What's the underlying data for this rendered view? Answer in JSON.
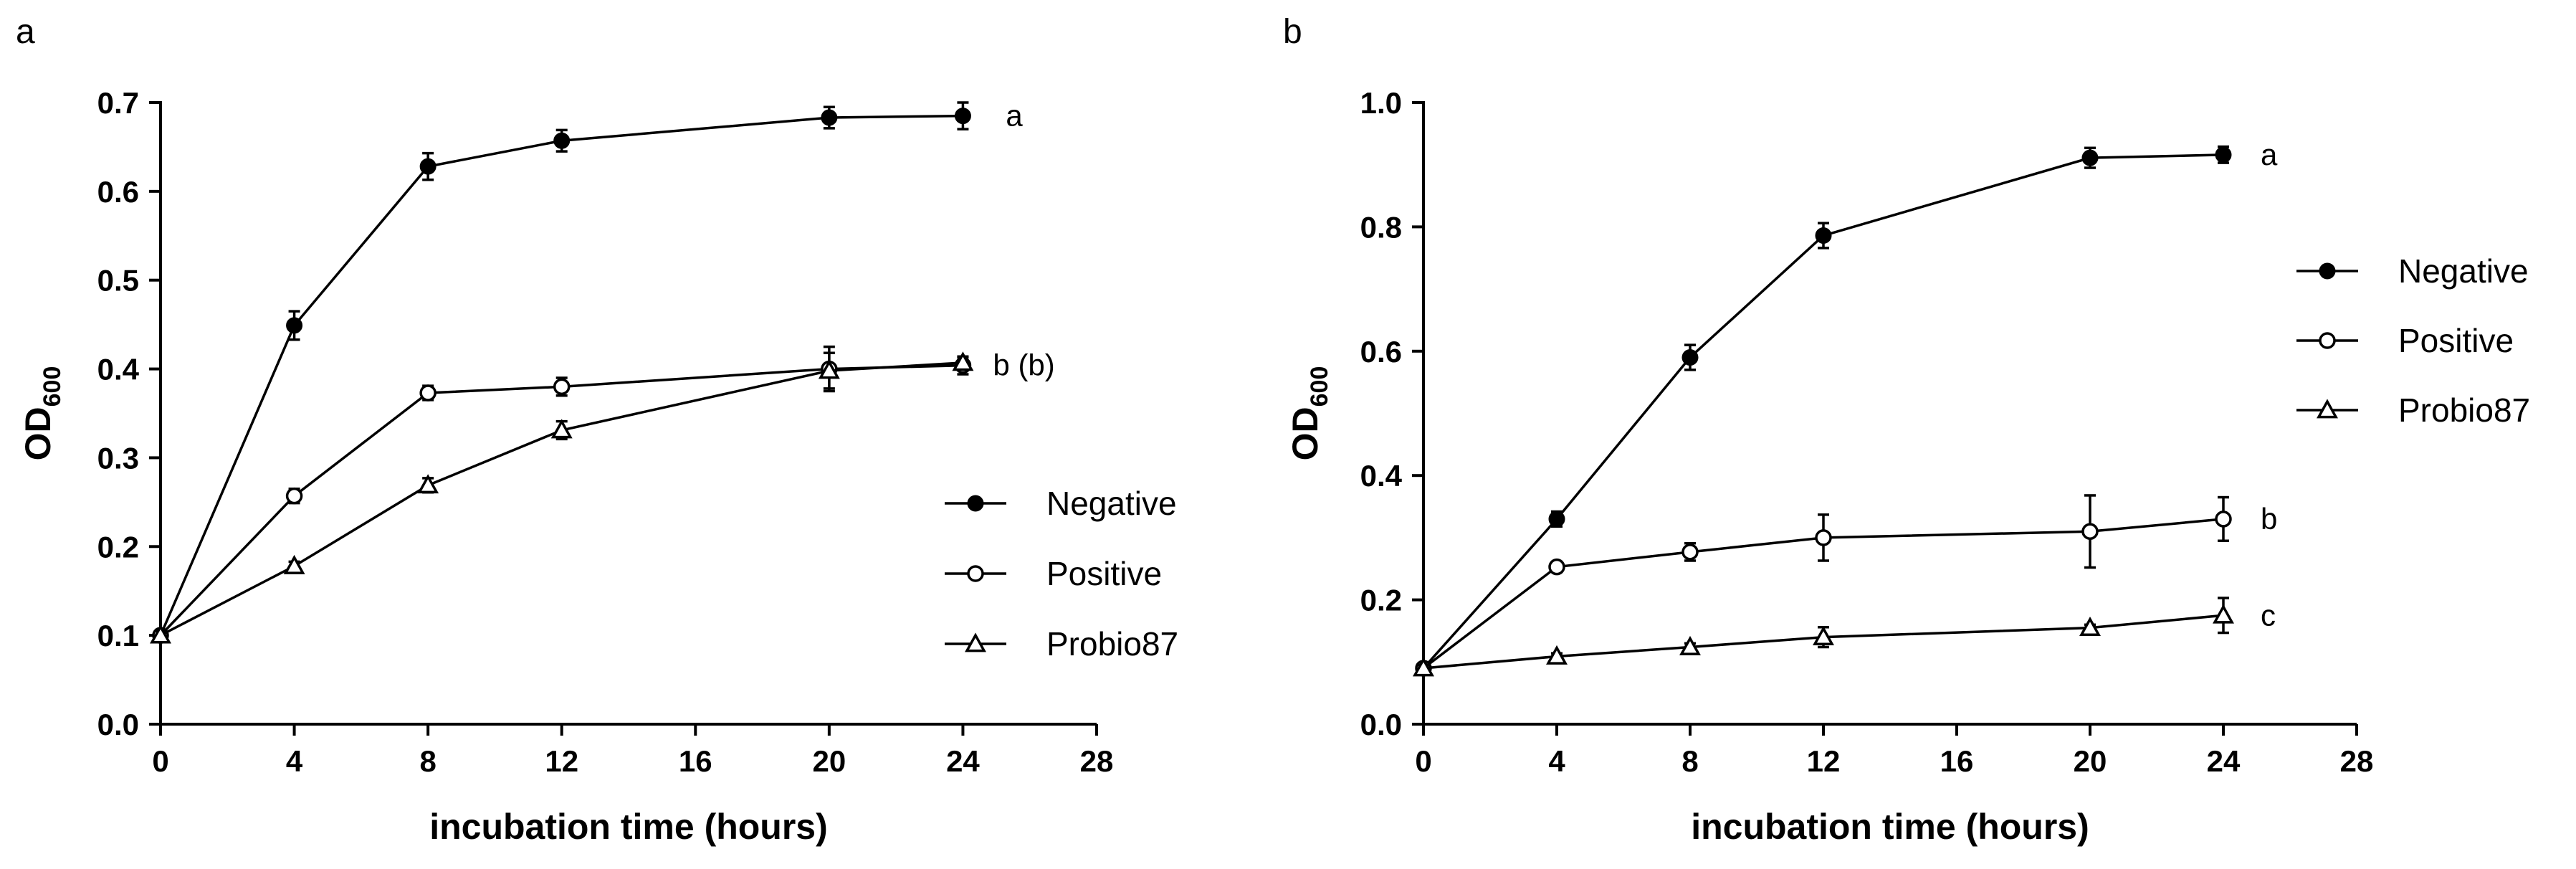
{
  "chart_data": [
    {
      "panel": "a",
      "type": "line",
      "xlabel": "incubation time (hours)",
      "ylabel": "OD",
      "ylabel_sub": "600",
      "xlim": [
        0,
        28
      ],
      "ylim": [
        0,
        0.7
      ],
      "xticks": [
        0,
        4,
        8,
        12,
        16,
        20,
        24,
        28
      ],
      "xtick_labels": [
        "0",
        "4",
        "8",
        "12",
        "16",
        "20",
        "24",
        "28"
      ],
      "yticks": [
        0,
        0.1,
        0.2,
        0.3,
        0.4,
        0.5,
        0.6,
        0.7
      ],
      "ytick_labels": [
        "0.0",
        "0.1",
        "0.2",
        "0.3",
        "0.4",
        "0.5",
        "0.6",
        "0.7"
      ],
      "grid": false,
      "legend_position": "bottom-right",
      "series": [
        {
          "name": "Negative",
          "marker": "filled-circle",
          "x": [
            0,
            4,
            8,
            12,
            20,
            24
          ],
          "y": [
            0.1,
            0.449,
            0.628,
            0.657,
            0.683,
            0.685
          ],
          "err": [
            0.005,
            0.016,
            0.015,
            0.012,
            0.012,
            0.015
          ]
        },
        {
          "name": "Positive",
          "marker": "open-circle",
          "x": [
            0,
            4,
            8,
            12,
            20,
            24
          ],
          "y": [
            0.1,
            0.257,
            0.373,
            0.38,
            0.4,
            0.404
          ],
          "err": [
            0.005,
            0.008,
            0.008,
            0.01,
            0.025,
            0.01
          ]
        },
        {
          "name": "Probio87",
          "marker": "open-triangle",
          "x": [
            0,
            4,
            8,
            12,
            20,
            24
          ],
          "y": [
            0.1,
            0.178,
            0.269,
            0.331,
            0.398,
            0.407
          ],
          "err": [
            0.005,
            0.005,
            0.008,
            0.01,
            0.02,
            0.006
          ]
        }
      ],
      "annotations": [
        {
          "text": "a",
          "near_series": "Negative"
        },
        {
          "text": "b (b)",
          "near_series": "Positive"
        }
      ]
    },
    {
      "panel": "b",
      "type": "line",
      "xlabel": "incubation time (hours)",
      "ylabel": "OD",
      "ylabel_sub": "600",
      "xlim": [
        0,
        28
      ],
      "ylim": [
        0,
        1.0
      ],
      "xticks": [
        0,
        4,
        8,
        12,
        16,
        20,
        24,
        28
      ],
      "xtick_labels": [
        "0",
        "4",
        "8",
        "12",
        "16",
        "20",
        "24",
        "28"
      ],
      "yticks": [
        0,
        0.2,
        0.4,
        0.6,
        0.8,
        1.0
      ],
      "ytick_labels": [
        "0.0",
        "0.2",
        "0.4",
        "0.6",
        "0.8",
        "1.0"
      ],
      "grid": false,
      "legend_position": "top-right, outside plot",
      "series": [
        {
          "name": "Negative",
          "marker": "filled-circle",
          "x": [
            0,
            4,
            8,
            12,
            20,
            24
          ],
          "y": [
            0.09,
            0.33,
            0.59,
            0.786,
            0.911,
            0.916
          ],
          "err": [
            0.005,
            0.012,
            0.02,
            0.02,
            0.016,
            0.013
          ]
        },
        {
          "name": "Positive",
          "marker": "open-circle",
          "x": [
            0,
            4,
            8,
            12,
            20,
            24
          ],
          "y": [
            0.09,
            0.253,
            0.277,
            0.3,
            0.31,
            0.33
          ],
          "err": [
            0.005,
            0.008,
            0.014,
            0.037,
            0.058,
            0.035
          ]
        },
        {
          "name": "Probio87",
          "marker": "open-triangle",
          "x": [
            0,
            4,
            8,
            12,
            20,
            24
          ],
          "y": [
            0.09,
            0.109,
            0.124,
            0.14,
            0.155,
            0.175
          ],
          "err": [
            0.005,
            0.005,
            0.006,
            0.016,
            0.005,
            0.028
          ]
        }
      ],
      "annotations": [
        {
          "text": "a",
          "near_series": "Negative"
        },
        {
          "text": "b",
          "near_series": "Positive"
        },
        {
          "text": "c",
          "near_series": "Probio87"
        }
      ]
    }
  ]
}
